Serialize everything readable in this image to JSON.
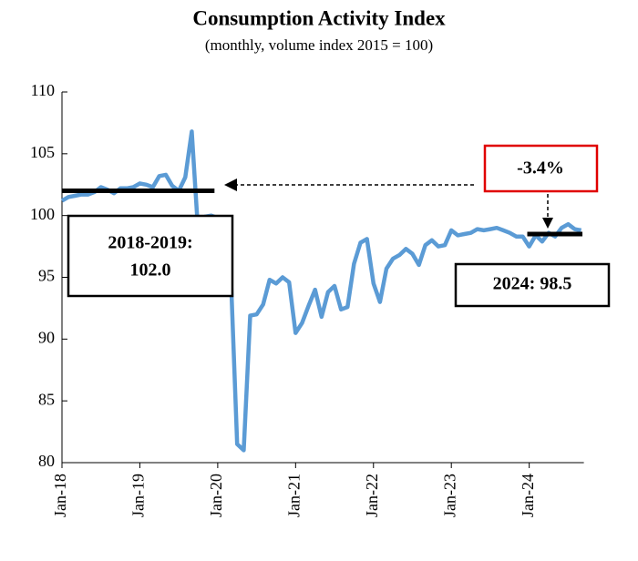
{
  "chart_data": {
    "type": "line",
    "title": "Consumption Activity Index",
    "subtitle": "(monthly, volume index 2015 = 100)",
    "categories": [
      "Jan-18",
      null,
      null,
      null,
      null,
      null,
      null,
      null,
      null,
      null,
      null,
      null,
      "Jan-19",
      null,
      null,
      null,
      null,
      null,
      null,
      null,
      null,
      null,
      null,
      null,
      "Jan-20",
      null,
      null,
      null,
      null,
      null,
      null,
      null,
      null,
      null,
      null,
      null,
      "Jan-21",
      null,
      null,
      null,
      null,
      null,
      null,
      null,
      null,
      null,
      null,
      null,
      "Jan-22",
      null,
      null,
      null,
      null,
      null,
      null,
      null,
      null,
      null,
      null,
      null,
      "Jan-23",
      null,
      null,
      null,
      null,
      null,
      null,
      null,
      null,
      null,
      null,
      null,
      "Jan-24",
      null,
      null,
      null,
      null,
      null,
      null,
      null,
      null
    ],
    "values": [
      101.2,
      101.5,
      101.6,
      101.7,
      101.7,
      101.9,
      102.3,
      102.1,
      101.8,
      102.2,
      102.2,
      102.3,
      102.6,
      102.5,
      102.3,
      103.2,
      103.3,
      102.4,
      102.0,
      103.1,
      106.8,
      98.5,
      99.9,
      100.0,
      99.8,
      99.5,
      95.5,
      81.5,
      81.0,
      91.9,
      92.0,
      92.8,
      94.8,
      94.5,
      95.0,
      94.6,
      90.5,
      91.3,
      92.7,
      94.0,
      91.8,
      93.8,
      94.3,
      92.4,
      92.6,
      96.1,
      97.8,
      98.1,
      94.5,
      93.0,
      95.7,
      96.5,
      96.8,
      97.3,
      96.9,
      96.0,
      97.6,
      98.0,
      97.5,
      97.6,
      98.8,
      98.4,
      98.5,
      98.6,
      98.9,
      98.8,
      98.9,
      99.0,
      98.8,
      98.6,
      98.3,
      98.3,
      97.5,
      98.4,
      97.9,
      98.6,
      98.3,
      99.0,
      99.3,
      98.9,
      98.8
    ],
    "color": "#5b9bd5",
    "ylim": [
      80,
      110
    ],
    "yticks": [
      80,
      85,
      90,
      95,
      100,
      105,
      110
    ],
    "averages": [
      {
        "label": [
          "2018-2019:",
          "102.0"
        ],
        "value": 102.0
      },
      {
        "label": [
          "2024: 98.5"
        ],
        "value": 98.5
      }
    ],
    "change_label": "-3.4%"
  }
}
